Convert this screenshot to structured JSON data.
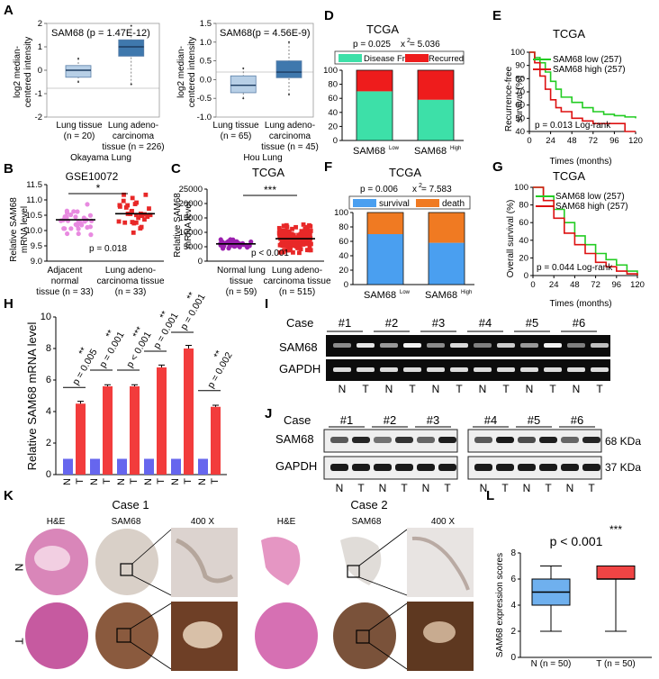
{
  "panels": {
    "A": {
      "letter": "A",
      "left": {
        "title": "SAM68 (p = 1.47E-12)",
        "ylabel_line1": "log2 median-",
        "ylabel_line2": "centered intensity",
        "yticks": [
          "2",
          "1",
          "0",
          "-1",
          "-2"
        ],
        "groups": [
          {
            "name_line1": "Lung tissue",
            "name_line2": "(n = 20)",
            "name_line3": ""
          },
          {
            "name_line1": "Lung adeno-",
            "name_line2": "carcinoma",
            "name_line3": "tissue (n = 226)"
          }
        ],
        "footer": "Okayama Lung"
      },
      "right": {
        "title": "SAM68(p = 4.56E-9)",
        "ylabel_line1": "log2 median-",
        "ylabel_line2": "centered intensity",
        "yticks": [
          "1.5",
          "1.0",
          "0.5",
          "0.0",
          "-0.5",
          "-1.0"
        ],
        "groups": [
          {
            "name_line1": "Lung tissue",
            "name_line2": "(n = 65)",
            "name_line3": ""
          },
          {
            "name_line1": "Lung adeno-",
            "name_line2": "carcinoma",
            "name_line3": "tissue (n = 45)"
          }
        ],
        "footer": "Hou Lung"
      }
    },
    "B": {
      "letter": "B",
      "title": "GSE10072",
      "ylabel_line1": "Relative SAM68",
      "ylabel_line2": "mRNA level",
      "yticks": [
        "11.5",
        "11.0",
        "10.5",
        "10.0",
        "9.5",
        "9.0"
      ],
      "sig": "*",
      "pvalue": "p = 0.018",
      "groups": [
        {
          "line1": "Adjacent",
          "line2": "normal",
          "line3": "tissue (n = 33)"
        },
        {
          "line1": "Lung adeno-",
          "line2": "carcinoma tissue",
          "line3": "(n = 33)"
        }
      ]
    },
    "C": {
      "letter": "C",
      "title": "TCGA",
      "ylabel_line1": "Relative SAM68",
      "ylabel_line2": "mRNA level",
      "yticks": [
        "25000",
        "20000",
        "15000",
        "10000",
        "5000",
        "0"
      ],
      "sig": "***",
      "pvalue": "p < 0.001",
      "groups": [
        {
          "line1": "Normal lung",
          "line2": "tissue",
          "line3": "(n = 59)"
        },
        {
          "line1": "Lung adeno-",
          "line2": "carcinoma tissue",
          "line3": "(n = 515)"
        }
      ]
    },
    "D": {
      "letter": "D",
      "title": "TCGA",
      "stat_p": "p = 0.025",
      "stat_chi": "x",
      "stat_chi_exp": "2",
      "stat_chi_val": " = 5.036",
      "legend": [
        "Disease Free",
        "Recurred"
      ],
      "colors": [
        "#3de0a8",
        "#ee1c1c"
      ],
      "yticks": [
        "100",
        "80",
        "60",
        "40",
        "20",
        "0"
      ],
      "groups": [
        {
          "name": "SAM68",
          "sup": "Low"
        },
        {
          "name": "SAM68",
          "sup": "High"
        }
      ]
    },
    "E": {
      "letter": "E",
      "title": "TCGA",
      "ylabel_line1": "Recurrence-free",
      "ylabel_line2": "survival (%)",
      "xlabel": "Times (months)",
      "xticks": [
        "0",
        "24",
        "48",
        "72",
        "96",
        "120"
      ],
      "yticks": [
        "100",
        "90",
        "80",
        "70",
        "60",
        "50",
        "40"
      ],
      "legend": [
        "SAM68 low (257)",
        "SAM68 high (257)"
      ],
      "colors": [
        "#22cc22",
        "#dd1111"
      ],
      "stat": "p = 0.013  Log-rank"
    },
    "F": {
      "letter": "F",
      "title": "TCGA",
      "stat_p": "p = 0.006",
      "stat_chi": "x",
      "stat_chi_exp": "2",
      "stat_chi_val": " = 7.583",
      "legend": [
        "survival",
        "death"
      ],
      "colors": [
        "#4a9ff0",
        "#f07a22"
      ],
      "yticks": [
        "100",
        "80",
        "60",
        "40",
        "20",
        "0"
      ],
      "groups": [
        {
          "name": "SAM68",
          "sup": "Low"
        },
        {
          "name": "SAM68",
          "sup": "High"
        }
      ]
    },
    "G": {
      "letter": "G",
      "title": "TCGA",
      "ylabel_line1": "Overall survival (%)",
      "xlabel": "Times (months)",
      "xticks": [
        "0",
        "24",
        "48",
        "72",
        "96",
        "120"
      ],
      "yticks": [
        "100",
        "80",
        "60",
        "40",
        "20",
        "0"
      ],
      "legend": [
        "SAM68 low (257)",
        "SAM68 high (257)"
      ],
      "colors": [
        "#22cc22",
        "#dd1111"
      ],
      "stat": "p = 0.044  Log-rank"
    },
    "H": {
      "letter": "H",
      "ylabel": "Relative SAM68 mRNA level",
      "yticks": [
        "10",
        "8",
        "6",
        "4",
        "2",
        "0"
      ],
      "xlabels": [
        "N",
        "T",
        "N",
        "T",
        "N",
        "T",
        "N",
        "T",
        "N",
        "T",
        "N",
        "T"
      ],
      "sig": [
        "**",
        "**",
        "***",
        "**",
        "**",
        "**"
      ],
      "pvals": [
        "p = 0.005",
        "p = 0.001",
        "p < 0.001",
        "p = 0.001",
        "p = 0.001",
        "p = 0.002"
      ]
    },
    "I": {
      "letter": "I",
      "case_label": "Case",
      "cases": [
        "#1",
        "#2",
        "#3",
        "#4",
        "#5",
        "#6"
      ],
      "rows": [
        "SAM68",
        "GAPDH"
      ],
      "lanes": [
        "N",
        "T",
        "N",
        "T",
        "N",
        "T",
        "N",
        "T",
        "N",
        "T",
        "N",
        "T"
      ]
    },
    "J": {
      "letter": "J",
      "case_label": "Case",
      "cases": [
        "#1",
        "#2",
        "#3",
        "#4",
        "#5",
        "#6"
      ],
      "rows": [
        "SAM68",
        "GAPDH"
      ],
      "sizes": [
        "68 KDa",
        "37 KDa"
      ],
      "lanes": [
        "N",
        "T",
        "N",
        "T",
        "N",
        "T",
        "N",
        "T",
        "N",
        "T",
        "N",
        "T"
      ]
    },
    "K": {
      "letter": "K",
      "case1": "Case 1",
      "case2": "Case 2",
      "cols": [
        "H&E",
        "SAM68",
        "400 X"
      ],
      "rows": [
        "N",
        "T"
      ]
    },
    "L": {
      "letter": "L",
      "pvalue": "p < 0.001",
      "sig": "***",
      "ylabel": "SAM68 expression scores",
      "yticks": [
        "8",
        "6",
        "4",
        "2",
        "0"
      ],
      "groups": [
        "N (n = 50)",
        "T (n = 50)"
      ],
      "colors": [
        "#6fb0ee",
        "#f04444"
      ]
    }
  },
  "chart_data": [
    {
      "panel": "A-left",
      "type": "box",
      "title": "SAM68 (p = 1.47E-12)",
      "categories": [
        "Lung tissue (n = 20)",
        "Lung adeno-carcinoma tissue (n = 226)"
      ],
      "boxes": [
        {
          "q1": -0.3,
          "median": 0.0,
          "q3": 0.2,
          "min": -0.5,
          "max": 0.5
        },
        {
          "q1": 0.6,
          "median": 1.0,
          "q3": 1.3,
          "min": -0.6,
          "max": 1.9
        }
      ],
      "ylim": [
        -2,
        2
      ]
    },
    {
      "panel": "A-right",
      "type": "box",
      "title": "SAM68(p = 4.56E-9)",
      "categories": [
        "Lung tissue (n = 65)",
        "Lung adeno-carcinoma tissue (n = 45)"
      ],
      "boxes": [
        {
          "q1": -0.35,
          "median": -0.15,
          "q3": 0.1,
          "min": -0.5,
          "max": 0.3
        },
        {
          "q1": 0.05,
          "median": 0.2,
          "q3": 0.5,
          "min": -0.4,
          "max": 1.0
        }
      ],
      "ylim": [
        -1,
        1.5
      ]
    },
    {
      "panel": "B",
      "type": "scatter",
      "title": "GSE10072",
      "categories": [
        "Adjacent normal tissue (n = 33)",
        "Lung adeno-carcinoma tissue (n = 33)"
      ],
      "means": [
        10.35,
        10.55
      ],
      "ylim": [
        9.0,
        11.5
      ]
    },
    {
      "panel": "C",
      "type": "scatter",
      "title": "TCGA",
      "categories": [
        "Normal lung tissue (n = 59)",
        "Lung adeno-carcinoma tissue (n = 515)"
      ],
      "means": [
        6000,
        7800
      ],
      "ylim": [
        0,
        25000
      ]
    },
    {
      "panel": "D",
      "type": "bar",
      "title": "TCGA",
      "categories": [
        "SAM68 Low",
        "SAM68 High"
      ],
      "series": [
        {
          "name": "Disease Free",
          "values": [
            70,
            58
          ]
        },
        {
          "name": "Recurred",
          "values": [
            30,
            42
          ]
        }
      ],
      "ylim": [
        0,
        100
      ]
    },
    {
      "panel": "E",
      "type": "line",
      "title": "TCGA",
      "xlabel": "Times (months)",
      "ylabel": "Recurrence-free survival (%)",
      "series": [
        {
          "name": "SAM68 low (257)",
          "x": [
            0,
            6,
            12,
            18,
            24,
            30,
            36,
            48,
            60,
            72,
            84,
            96,
            108,
            120
          ],
          "y": [
            100,
            96,
            92,
            85,
            78,
            72,
            66,
            62,
            58,
            55,
            53,
            52,
            51,
            50
          ]
        },
        {
          "name": "SAM68 high (257)",
          "x": [
            0,
            6,
            12,
            18,
            24,
            30,
            36,
            48,
            60,
            72,
            84,
            96,
            108,
            120
          ],
          "y": [
            100,
            92,
            82,
            72,
            64,
            58,
            55,
            50,
            48,
            46,
            46,
            46,
            40,
            40
          ]
        }
      ],
      "xlim": [
        0,
        120
      ],
      "ylim": [
        40,
        100
      ]
    },
    {
      "panel": "F",
      "type": "bar",
      "title": "TCGA",
      "categories": [
        "SAM68 Low",
        "SAM68 High"
      ],
      "series": [
        {
          "name": "survival",
          "values": [
            70,
            58
          ]
        },
        {
          "name": "death",
          "values": [
            30,
            42
          ]
        }
      ],
      "ylim": [
        0,
        100
      ]
    },
    {
      "panel": "G",
      "type": "line",
      "title": "TCGA",
      "xlabel": "Times (months)",
      "ylabel": "Overall survival (%)",
      "series": [
        {
          "name": "SAM68 low (257)",
          "x": [
            0,
            12,
            24,
            36,
            48,
            60,
            72,
            84,
            96,
            108,
            120
          ],
          "y": [
            100,
            90,
            75,
            60,
            45,
            35,
            25,
            18,
            12,
            5,
            0
          ]
        },
        {
          "name": "SAM68 high (257)",
          "x": [
            0,
            12,
            24,
            36,
            48,
            60,
            72,
            84,
            96,
            108,
            120
          ],
          "y": [
            100,
            85,
            65,
            48,
            35,
            25,
            15,
            10,
            5,
            2,
            0
          ]
        }
      ],
      "xlim": [
        0,
        120
      ],
      "ylim": [
        0,
        100
      ]
    },
    {
      "panel": "H",
      "type": "bar",
      "ylabel": "Relative SAM68 mRNA level",
      "categories": [
        "N",
        "T",
        "N",
        "T",
        "N",
        "T",
        "N",
        "T",
        "N",
        "T",
        "N",
        "T"
      ],
      "values": [
        1.0,
        4.5,
        1.0,
        5.6,
        1.0,
        5.6,
        1.0,
        6.8,
        1.0,
        8.0,
        1.0,
        4.3
      ],
      "errors": [
        0,
        0.15,
        0,
        0.1,
        0,
        0.1,
        0,
        0.15,
        0,
        0.2,
        0,
        0.1
      ],
      "ylim": [
        0,
        10
      ]
    },
    {
      "panel": "L",
      "type": "box",
      "ylabel": "SAM68 expression scores",
      "categories": [
        "N (n = 50)",
        "T (n = 50)"
      ],
      "boxes": [
        {
          "q1": 4,
          "median": 5,
          "q3": 6,
          "min": 2,
          "max": 7
        },
        {
          "q1": 6,
          "median": 6,
          "q3": 7,
          "min": 2,
          "max": 7
        }
      ],
      "ylim": [
        0,
        8
      ]
    }
  ]
}
